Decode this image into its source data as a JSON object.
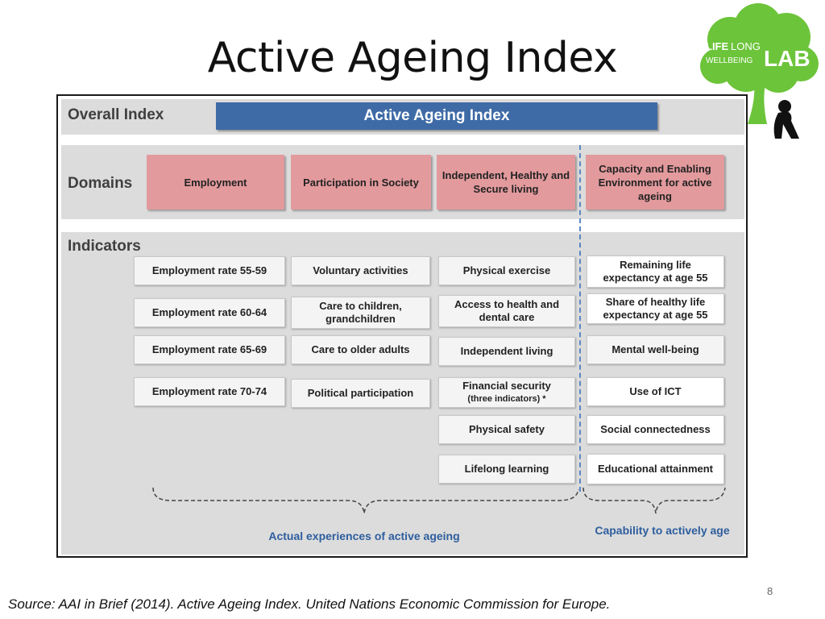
{
  "title": "Active Ageing Index",
  "logo": {
    "word1": "LIFE",
    "word2": "LONG",
    "word3": "WELLBEING",
    "word4": "LAB"
  },
  "figure": {
    "overall_label": "Overall Index",
    "overall_index": "Active Ageing Index",
    "domains_label": "Domains",
    "indicators_label": "Indicators",
    "domains": [
      "Employment",
      "Participation in Society",
      "Independent, Healthy and Secure living",
      "Capacity and Enabling Environment for active ageing"
    ],
    "indicators": {
      "employment": [
        "Employment rate 55-59",
        "Employment rate 60-64",
        "Employment rate 65-69",
        "Employment rate 70-74"
      ],
      "participation": [
        "Voluntary activities",
        "Care to children, grandchildren",
        "Care to older adults",
        "Political participation"
      ],
      "independent": [
        "Physical exercise",
        "Access to health and dental care",
        "Independent living",
        "Financial security",
        "(three indicators) *",
        "Physical safety",
        "Lifelong learning"
      ],
      "capacity": [
        "Remaining life expectancy at age 55",
        "Share of healthy life expectancy at age 55",
        "Mental well-being",
        "Use of ICT",
        "Social connectedness",
        "Educational attainment"
      ]
    },
    "caption_left": "Actual experiences of active ageing",
    "caption_right": "Capability to actively age"
  },
  "colors": {
    "index_bar": "#3e6ba6",
    "domain_box": "#e39a9d",
    "band": "#dcdcdc",
    "caption": "#2e5e9e"
  },
  "page_number": "8",
  "source": "Source: AAI in Brief (2014). Active Ageing Index. United Nations Economic Commission for Europe."
}
